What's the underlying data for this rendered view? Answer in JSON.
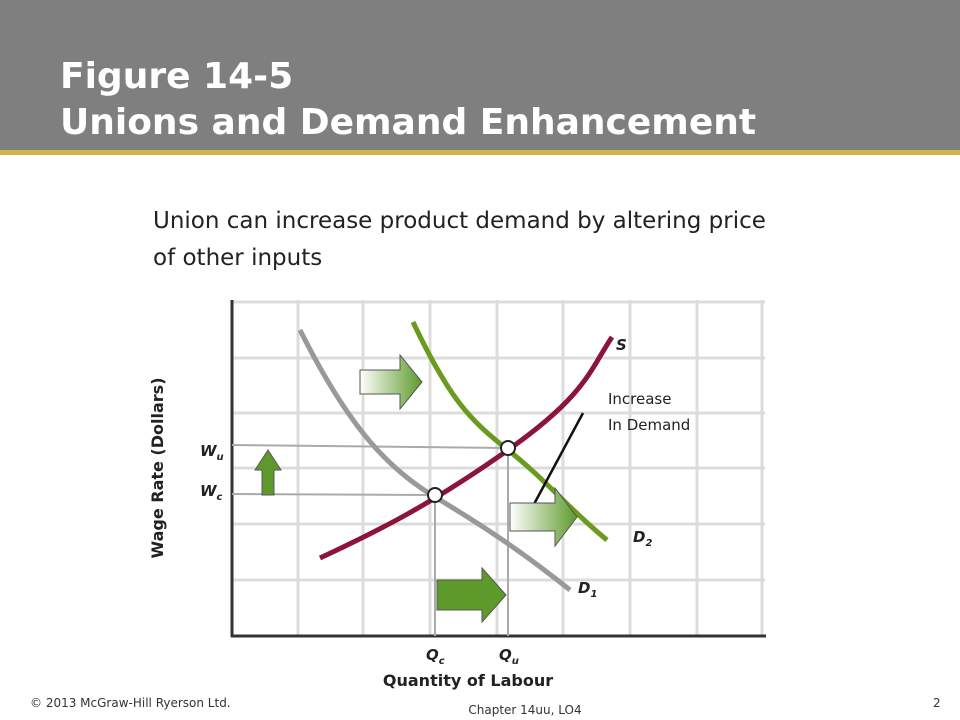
{
  "header": {
    "title_lines": [
      "Figure 14-5",
      "Unions and Demand Enhancement"
    ]
  },
  "body": {
    "lines": [
      "Union can increase product demand by altering price",
      "of other inputs"
    ]
  },
  "diagram": {
    "y_axis_label": "Wage Rate (Dollars)",
    "x_axis_label": "Quantity of Labour",
    "supply_label": "S",
    "annotation_lines": [
      "Increase",
      "In Demand"
    ],
    "d2_label": {
      "main": "D",
      "sub": "2"
    },
    "d1_label": {
      "main": "D",
      "sub": "1"
    },
    "wu_label": {
      "main": "W",
      "sub": "u"
    },
    "wc_label": {
      "main": "W",
      "sub": "c"
    },
    "qc_label": {
      "main": "Q",
      "sub": "c"
    },
    "qu_label": {
      "main": "Q",
      "sub": "u"
    }
  },
  "footer": {
    "copyright": "© 2013 McGraw-Hill Ryerson Ltd.",
    "chapter": "Chapter 14uu, LO4",
    "page": "2"
  }
}
